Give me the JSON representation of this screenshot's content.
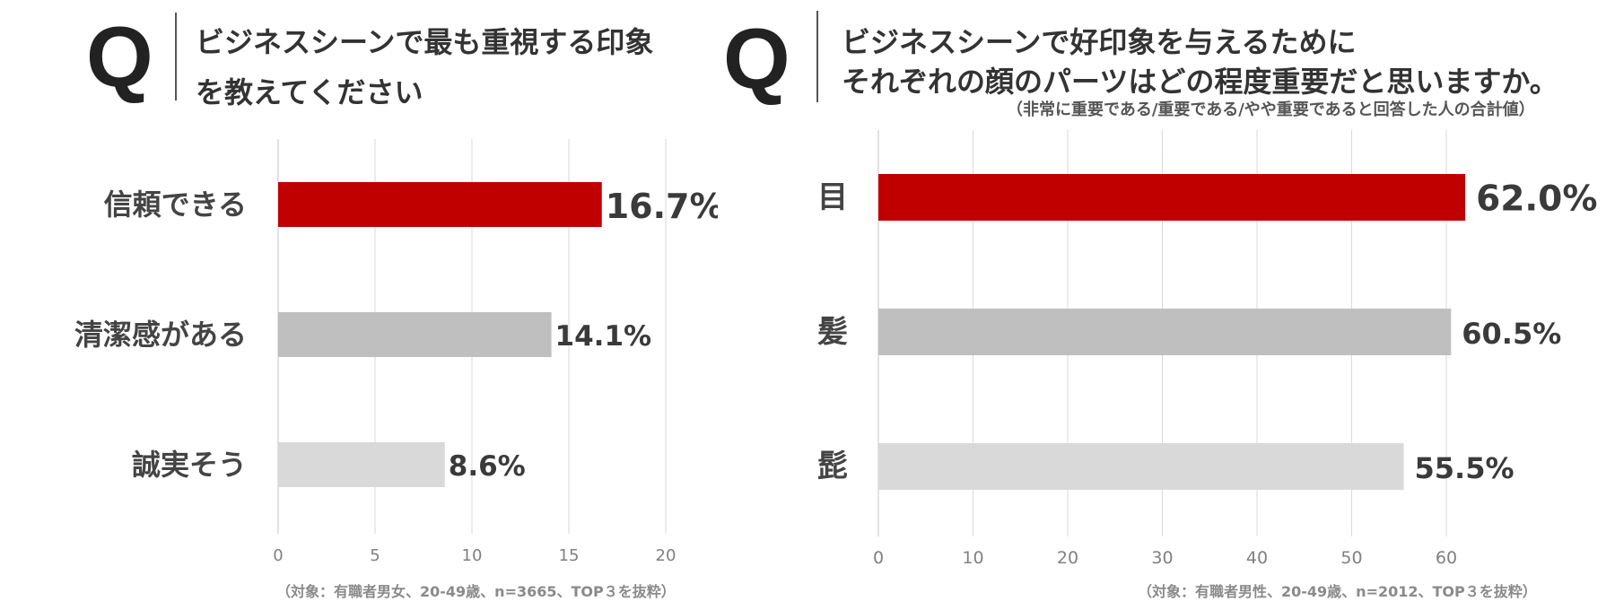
{
  "left": {
    "q_mark": "Q",
    "title_line1": "ビジネスシーンで最も重視する印象",
    "title_line2": "を教えてください",
    "footnote": "（対象：有職者男女、20-49歳、n=3665、TOP３を抜粋）"
  },
  "right": {
    "q_mark": "Q",
    "title_line1": "ビジネスシーンで好印象を与えるために",
    "title_line2": "それぞれの顔のパーツはどの程度重要だと思いますか。",
    "note": "（非常に重要である/重要である/やや重要であると回答した人の合計値）",
    "footnote": "（対象：有職者男性、20-49歳、n=2012、TOP３を抜粋）"
  },
  "colors": {
    "top": "#c00000",
    "second": "#bfbfbf",
    "third": "#d9d9d9",
    "grid": "#d9d9d9"
  },
  "chart_data": [
    {
      "type": "bar",
      "orientation": "horizontal",
      "categories": [
        "信頼できる",
        "清潔感がある",
        "誠実そう"
      ],
      "values": [
        16.7,
        14.1,
        8.6
      ],
      "value_labels": [
        "16.7%",
        "14.1%",
        "8.6%"
      ],
      "xlim": [
        0,
        20
      ],
      "xticks": [
        "0",
        "5",
        "10",
        "15",
        "20"
      ],
      "grid": true
    },
    {
      "type": "bar",
      "orientation": "horizontal",
      "categories": [
        "目",
        "髪",
        "髭"
      ],
      "values": [
        62.0,
        60.5,
        55.5
      ],
      "value_labels": [
        "62.0%",
        "60.5%",
        "55.5%"
      ],
      "xlim": [
        0,
        60
      ],
      "xticks": [
        "0",
        "10",
        "20",
        "30",
        "40",
        "50",
        "60"
      ],
      "grid": true
    }
  ]
}
